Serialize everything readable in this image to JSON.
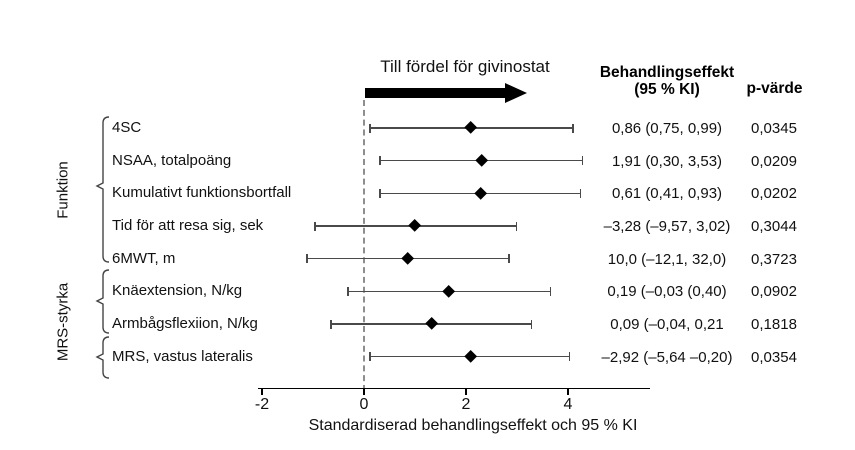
{
  "annotation": {
    "favor_label": "Till fördel för givinostat"
  },
  "columns": {
    "effect_header_line1": "Behandlingseffekt",
    "effect_header_line2": "(95 % KI)",
    "p_header": "p-värde"
  },
  "groups": [
    {
      "label": "Funktion"
    },
    {
      "label": "MRS-styrka"
    }
  ],
  "colors": {
    "marker": "#000000",
    "ci_line": "#4a4a4a",
    "zero_line_dash": "#8e8e8e",
    "text": "#111111"
  },
  "chart_data": {
    "type": "scatter",
    "subtype": "forest-plot",
    "xlabel": "Standardiserad behandlingseffekt och 95 % KI",
    "x_ticks": [
      -2,
      0,
      2,
      4
    ],
    "xlim": [
      -2.1,
      5.6
    ],
    "zero_reference": 0,
    "grid": false,
    "rows": [
      {
        "label": "4SC",
        "est": 2.1,
        "lo": 0.12,
        "hi": 4.1,
        "effect": "0,86 (0,75, 0,99)",
        "p": "0,0345",
        "group": "Funktion"
      },
      {
        "label": "NSAA, totalpoäng",
        "est": 2.31,
        "lo": 0.31,
        "hi": 4.29,
        "effect": "1,91 (0,30, 3,53)",
        "p": "0,0209",
        "group": "Funktion"
      },
      {
        "label": "Kumulativt funktionsbortfall",
        "est": 2.29,
        "lo": 0.31,
        "hi": 4.25,
        "effect": "0,61 (0,41, 0,93)",
        "p": "0,0202",
        "group": "Funktion"
      },
      {
        "label": "Tid för att resa sig, sek",
        "est": 1.0,
        "lo": -0.96,
        "hi": 2.99,
        "effect": "–3,28 (–9,57, 3,02)",
        "p": "0,3044",
        "group": "Funktion"
      },
      {
        "label": "6MWT, m",
        "est": 0.86,
        "lo": -1.12,
        "hi": 2.84,
        "effect": "10,0 (–12,1, 32,0)",
        "p": "0,3723",
        "group": "Funktion"
      },
      {
        "label": "Knäextension, N/kg",
        "est": 1.67,
        "lo": -0.31,
        "hi": 3.66,
        "effect": "0,19 (–0,03 (0,40)",
        "p": "0,0902",
        "group": "MRS-styrka"
      },
      {
        "label": "Armbågsflexiion, N/kg",
        "est": 1.33,
        "lo": -0.65,
        "hi": 3.29,
        "effect": "0,09 (–0,04, 0,21",
        "p": "0,1818",
        "group": "MRS-styrka"
      },
      {
        "label": "MRS, vastus lateralis",
        "est": 2.1,
        "lo": 0.12,
        "hi": 4.03,
        "effect": "–2,92 (–5,64 –0,20)",
        "p": "0,0354",
        "group": "MRS-styrka"
      }
    ]
  }
}
